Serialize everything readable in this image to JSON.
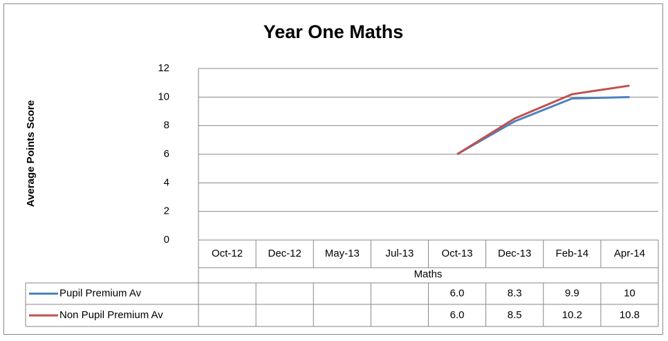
{
  "chart_data": {
    "type": "line",
    "title": "Year One Maths",
    "y_label": "Average Points Score",
    "x_label": "Maths",
    "categories": [
      "Oct-12",
      "Dec-12",
      "May-13",
      "Jul-13",
      "Oct-13",
      "Dec-13",
      "Feb-14",
      "Apr-14"
    ],
    "series": [
      {
        "name": "Pupil Premium Av",
        "color": "#4f81bd",
        "values": [
          null,
          null,
          null,
          null,
          6.0,
          8.3,
          9.9,
          10
        ],
        "value_labels": [
          null,
          null,
          null,
          null,
          "6.0",
          "8.3",
          "9.9",
          "10"
        ]
      },
      {
        "name": "Non Pupil Premium Av",
        "color": "#c0504d",
        "values": [
          null,
          null,
          null,
          null,
          6.0,
          8.5,
          10.2,
          10.8
        ],
        "value_labels": [
          null,
          null,
          null,
          null,
          "6.0",
          "8.5",
          "10.2",
          "10.8"
        ]
      }
    ],
    "ylim": [
      0,
      12
    ],
    "yticks": [
      0,
      2,
      4,
      6,
      8,
      10,
      12
    ],
    "grid": true,
    "data_table": true
  }
}
